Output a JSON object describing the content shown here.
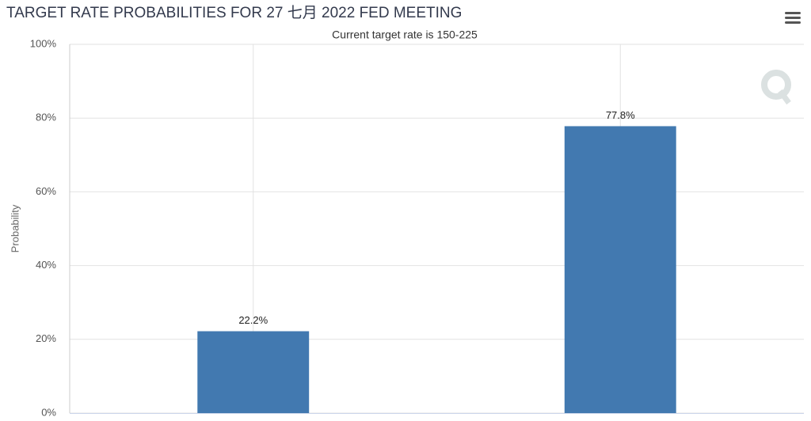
{
  "chart_data": {
    "type": "bar",
    "title": "TARGET RATE PROBABILITIES FOR 27 七月 2022 FED MEETING",
    "subtitle": "Current target rate is 150-225",
    "y_label": "Probability",
    "categories": [
      null,
      null
    ],
    "values": [
      22.2,
      77.8
    ],
    "value_labels": [
      "22.2%",
      "77.8%"
    ],
    "color": "#4279b0",
    "ylim": [
      0,
      100
    ],
    "yticks": [
      {
        "value": 0,
        "label": "0%"
      },
      {
        "value": 20,
        "label": "20%"
      },
      {
        "value": 40,
        "label": "40%"
      },
      {
        "value": 60,
        "label": "60%"
      },
      {
        "value": 80,
        "label": "80%"
      },
      {
        "value": 100,
        "label": "100%"
      }
    ],
    "grid": true
  }
}
